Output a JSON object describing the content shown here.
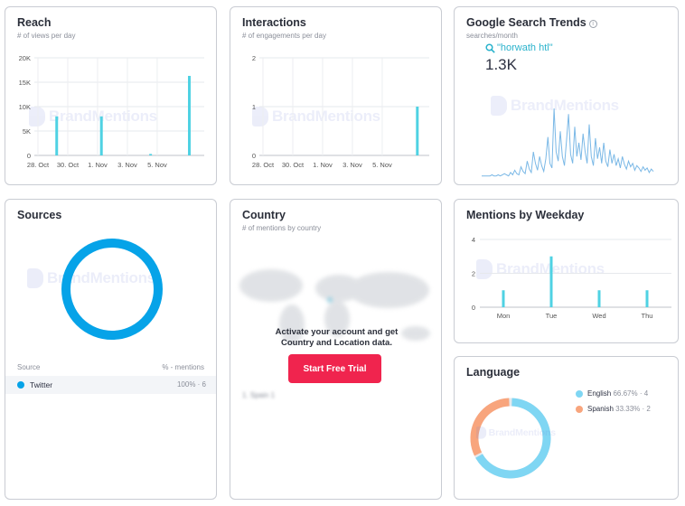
{
  "watermark": "BrandMentions",
  "colors": {
    "bar": "#4fd2e3",
    "ring": "#06a3e8",
    "english": "#7fd6f3",
    "spanish": "#f8a57d",
    "trial": "#f0244e"
  },
  "reach": {
    "title": "Reach",
    "subtitle": "# of views per day",
    "chart_data": {
      "type": "bar",
      "title": "Reach",
      "ylabel": "# of views per day",
      "ylim": [
        0,
        20000
      ],
      "y_ticks": [
        "0",
        "5K",
        "10K",
        "15K",
        "20K"
      ],
      "x_ticks": [
        "28. Oct",
        "30. Oct",
        "1. Nov",
        "3. Nov",
        "5. Nov"
      ],
      "bars": [
        {
          "day": 1.5,
          "value": 8000
        },
        {
          "day": 4.5,
          "value": 8000
        },
        {
          "day": 7.8,
          "value": 300
        },
        {
          "day": 10.4,
          "value": 16300
        }
      ]
    }
  },
  "interactions": {
    "title": "Interactions",
    "subtitle": "# of engagements per day",
    "chart_data": {
      "type": "bar",
      "title": "Interactions",
      "ylabel": "# of engagements per day",
      "ylim": [
        0,
        2
      ],
      "y_ticks": [
        "0",
        "1",
        "2"
      ],
      "x_ticks": [
        "28. Oct",
        "30. Oct",
        "1. Nov",
        "3. Nov",
        "5. Nov"
      ],
      "bars": [
        {
          "day": 10.6,
          "value": 1
        }
      ]
    }
  },
  "trends": {
    "title": "Google Search Trends",
    "subtitle": "searches/month",
    "query": "\"horwath htl\"",
    "value": "1.3K",
    "chart_data": {
      "type": "line",
      "values": [
        1,
        1,
        1,
        1,
        1,
        2,
        1,
        1,
        2,
        1,
        2,
        3,
        2,
        1,
        4,
        2,
        6,
        3,
        2,
        9,
        5,
        3,
        14,
        7,
        4,
        22,
        12,
        6,
        18,
        10,
        5,
        16,
        35,
        12,
        8,
        60,
        22,
        14,
        40,
        18,
        10,
        32,
        55,
        20,
        12,
        44,
        18,
        30,
        15,
        38,
        22,
        12,
        46,
        18,
        10,
        34,
        16,
        26,
        12,
        30,
        14,
        9,
        24,
        12,
        20,
        10,
        16,
        8,
        18,
        11,
        7,
        14,
        9,
        12,
        6,
        10,
        8,
        5,
        9,
        6,
        8,
        4,
        7,
        5
      ]
    }
  },
  "sources": {
    "title": "Sources",
    "col_source": "Source",
    "col_mentions": "% - mentions",
    "rows": [
      {
        "name": "Twitter",
        "value": "100% · 6"
      }
    ],
    "chart_data": {
      "type": "pie",
      "labels": [
        "Twitter"
      ],
      "values": [
        100
      ]
    }
  },
  "country": {
    "title": "Country",
    "subtitle": "# of mentions by country",
    "cta_line1": "Activate your account and get",
    "cta_line2": "Country and Location data.",
    "button": "Start Free Trial",
    "blurred_row": "1. Spain 1"
  },
  "weekday": {
    "title": "Mentions by Weekday",
    "chart_data": {
      "type": "bar",
      "title": "Mentions by Weekday",
      "ylim": [
        0,
        4
      ],
      "y_ticks": [
        "0",
        "2",
        "4"
      ],
      "categories": [
        "Mon",
        "Tue",
        "Wed",
        "Thu"
      ],
      "values": [
        1,
        3,
        1,
        1
      ]
    }
  },
  "language": {
    "title": "Language",
    "items": [
      {
        "label": "English",
        "pct": "66.67% · 4"
      },
      {
        "label": "Spanish",
        "pct": "33.33% · 2"
      }
    ],
    "chart_data": {
      "type": "pie",
      "labels": [
        "English",
        "Spanish"
      ],
      "values": [
        66.67,
        33.33
      ]
    }
  }
}
